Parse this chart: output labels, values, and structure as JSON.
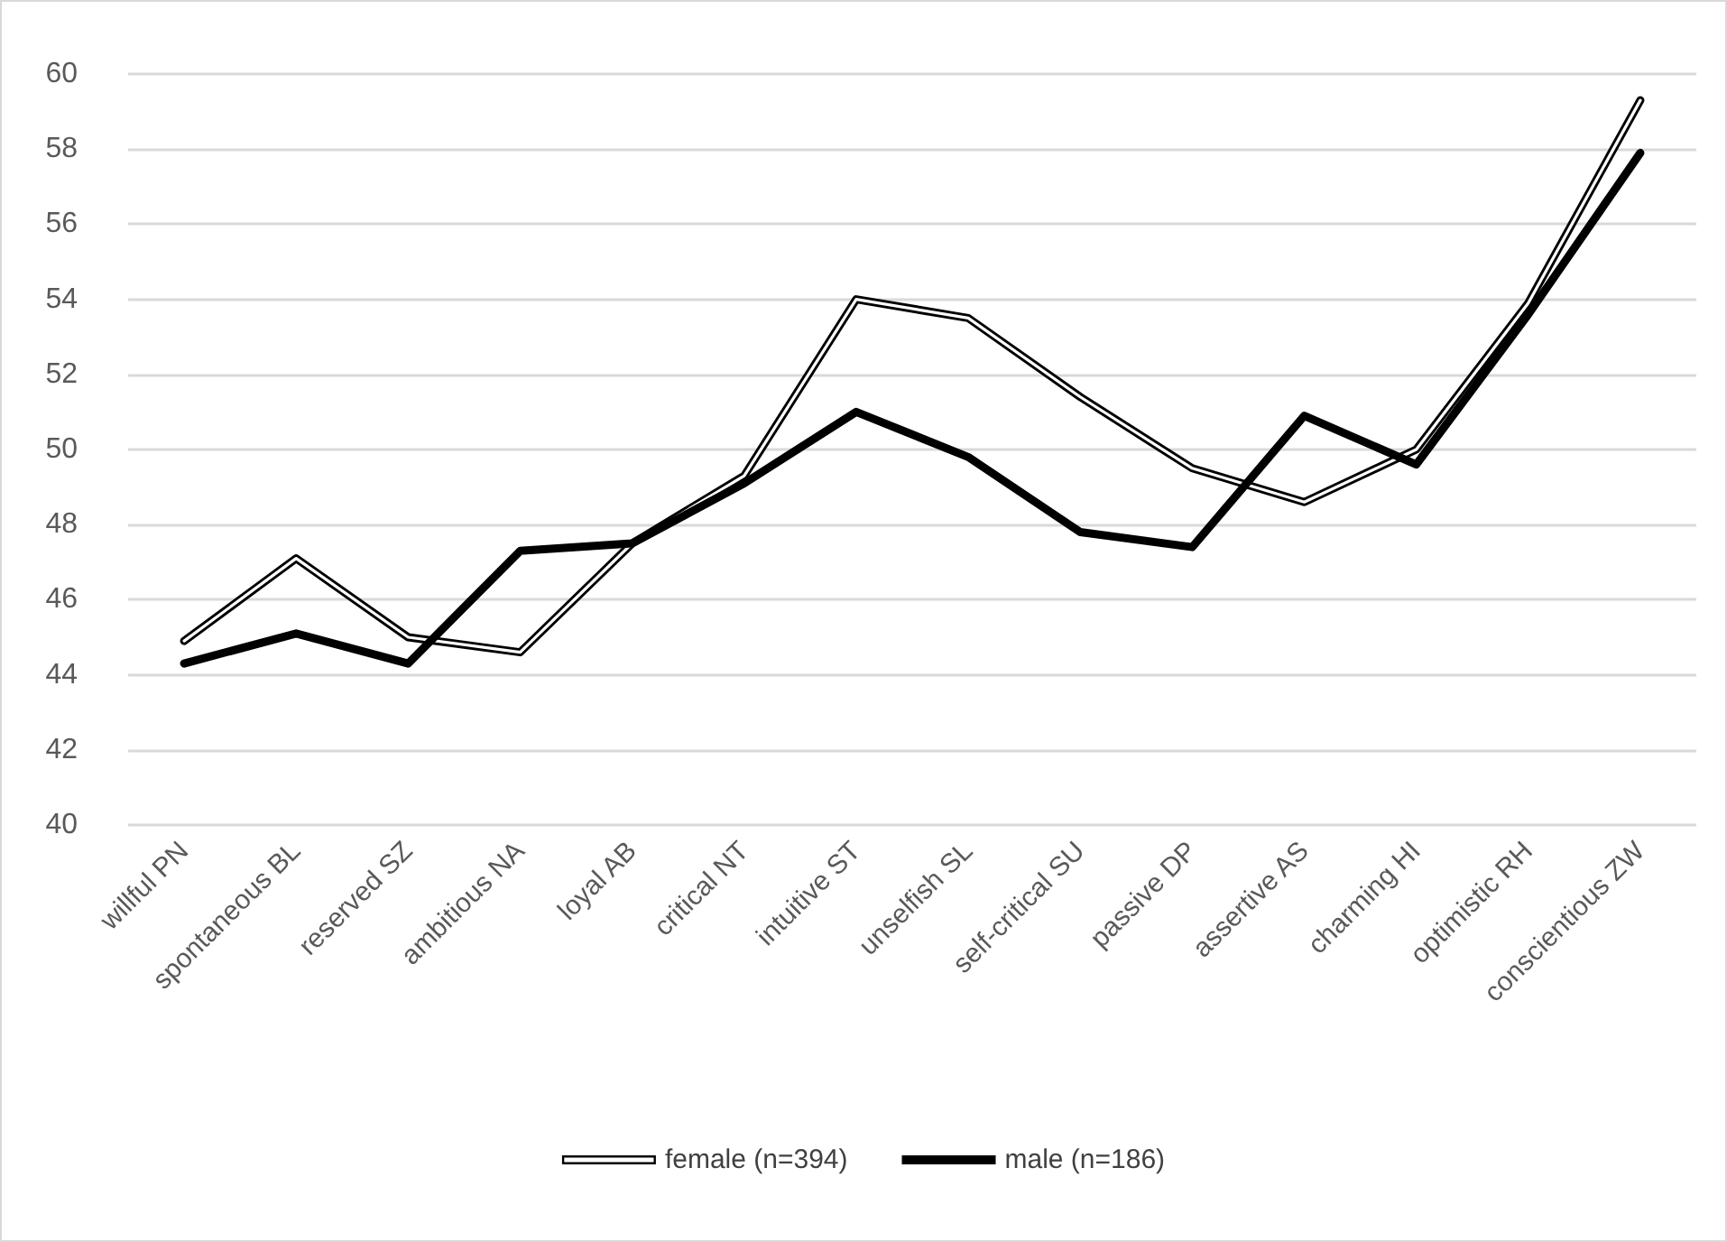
{
  "chart_data": {
    "type": "line",
    "categories": [
      "willful PN",
      "spontaneous BL",
      "reserved SZ",
      "ambitious NA",
      "loyal AB",
      "critical NT",
      "intuitive ST",
      "unselfish SL",
      "self-critical SU",
      "passive DP",
      "assertive AS",
      "charming HI",
      "optimistic RH",
      "conscientious ZW"
    ],
    "series": [
      {
        "name": "female (n=394)",
        "color": "#000000",
        "values": [
          44.9,
          47.1,
          45.0,
          44.6,
          47.5,
          49.3,
          54.0,
          53.5,
          51.4,
          49.5,
          48.6,
          50.0,
          53.9,
          59.3
        ]
      },
      {
        "name": "male (n=186)",
        "color": "#000000",
        "values": [
          44.3,
          45.1,
          44.3,
          47.3,
          47.5,
          49.1,
          51.0,
          49.8,
          47.8,
          47.4,
          50.9,
          49.6,
          53.6,
          57.9
        ]
      }
    ],
    "ylim": [
      40,
      60
    ],
    "yticks": [
      40,
      42,
      44,
      46,
      48,
      50,
      52,
      54,
      56,
      58,
      60
    ],
    "grid": "y",
    "legend": "bottom",
    "marker": "none",
    "line_style": "solid"
  }
}
